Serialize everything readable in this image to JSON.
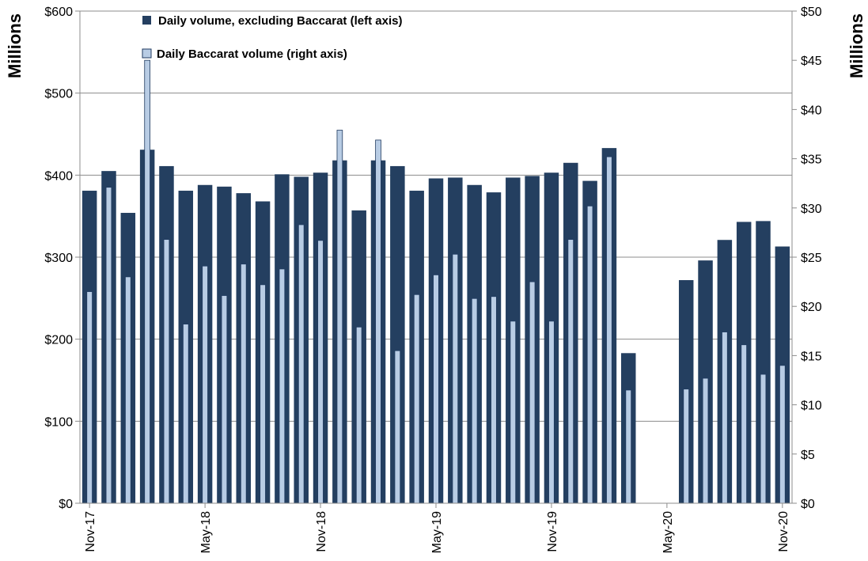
{
  "chart_data": {
    "type": "bar",
    "left_axis": {
      "title": "Millions",
      "ylim": [
        0,
        600
      ],
      "ticks": [
        0,
        100,
        200,
        300,
        400,
        500,
        600
      ],
      "tick_labels": [
        "$0",
        "$100",
        "$200",
        "$300",
        "$400",
        "$500",
        "$600"
      ]
    },
    "right_axis": {
      "title": "Millions",
      "ylim": [
        0,
        50
      ],
      "ticks": [
        0,
        5,
        10,
        15,
        20,
        25,
        30,
        35,
        40,
        45,
        50
      ],
      "tick_labels": [
        "$0",
        "$5",
        "$10",
        "$15",
        "$20",
        "$25",
        "$30",
        "$35",
        "$40",
        "$45",
        "$50"
      ]
    },
    "x_categories": [
      "Nov-17",
      "Dec-17",
      "Jan-18",
      "Feb-18",
      "Mar-18",
      "Apr-18",
      "May-18",
      "Jun-18",
      "Jul-18",
      "Aug-18",
      "Sep-18",
      "Oct-18",
      "Nov-18",
      "Dec-18",
      "Jan-19",
      "Feb-19",
      "Mar-19",
      "Apr-19",
      "May-19",
      "Jun-19",
      "Jul-19",
      "Aug-19",
      "Sep-19",
      "Oct-19",
      "Nov-19",
      "Dec-19",
      "Jan-20",
      "Feb-20",
      "Mar-20",
      "Apr-20",
      "May-20",
      "Jun-20",
      "Jul-20",
      "Aug-20",
      "Sep-20",
      "Oct-20",
      "Nov-20"
    ],
    "x_tick_labels": [
      {
        "index": 0,
        "label": "Nov-17"
      },
      {
        "index": 6,
        "label": "May-18"
      },
      {
        "index": 12,
        "label": "Nov-18"
      },
      {
        "index": 18,
        "label": "May-19"
      },
      {
        "index": 24,
        "label": "Nov-19"
      },
      {
        "index": 30,
        "label": "May-20"
      },
      {
        "index": 36,
        "label": "Nov-20"
      }
    ],
    "series": [
      {
        "name": "Daily volume, excluding Baccarat (left axis)",
        "axis": "left",
        "color": "#243F60",
        "values": [
          381,
          405,
          354,
          431,
          411,
          381,
          388,
          386,
          378,
          368,
          401,
          398,
          403,
          418,
          357,
          418,
          411,
          381,
          396,
          397,
          388,
          379,
          397,
          399,
          403,
          415,
          393,
          433,
          183,
          null,
          null,
          272,
          296,
          321,
          343,
          344,
          313
        ]
      },
      {
        "name": "Daily Baccarat volume (right axis)",
        "axis": "right",
        "color": "#B8CCE4",
        "values": [
          21.5,
          32.1,
          23.0,
          45.0,
          26.8,
          18.2,
          24.1,
          21.1,
          24.3,
          22.2,
          23.8,
          28.3,
          26.7,
          37.9,
          17.9,
          36.9,
          15.5,
          21.2,
          23.2,
          25.3,
          20.8,
          21.0,
          18.5,
          22.5,
          18.5,
          26.8,
          30.2,
          35.2,
          11.5,
          null,
          null,
          11.6,
          12.7,
          17.4,
          16.1,
          13.1,
          14.0
        ]
      }
    ],
    "legend_position": "top-left",
    "grid": true
  }
}
